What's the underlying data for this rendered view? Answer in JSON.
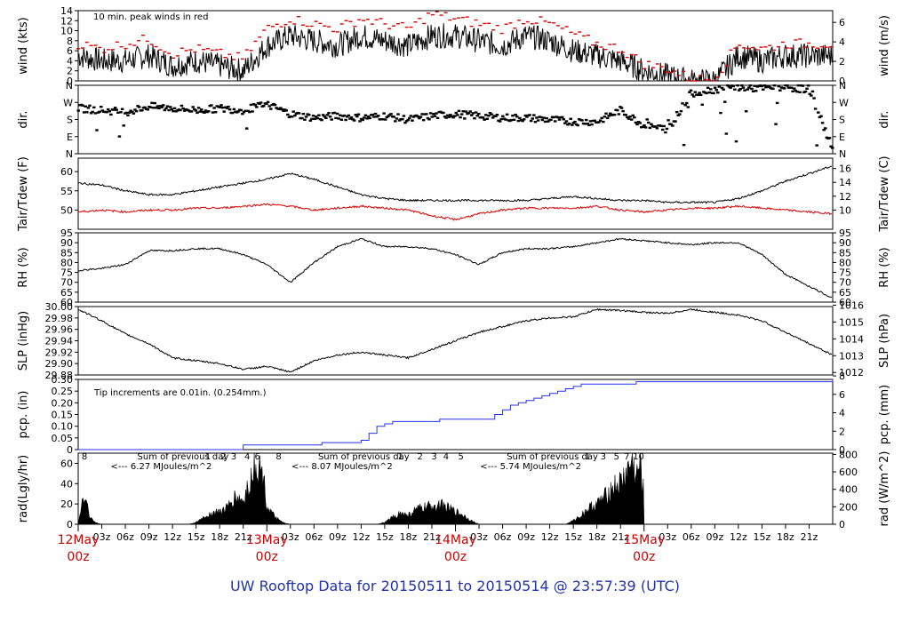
{
  "title": "UW Rooftop Data for 20150511  to  20150514 @ 23:57:39  (UTC)",
  "colors": {
    "black": "#000000",
    "red": "#dd0000",
    "blue": "#2233ee",
    "purple": "#9922aa",
    "date_red": "#cc0000",
    "title_blue": "#2233aa"
  },
  "time_axis": {
    "major_ticks": [
      {
        "top": "12May",
        "bottom": "00z"
      },
      {
        "top": "13May",
        "bottom": "00z"
      },
      {
        "top": "14May",
        "bottom": "00z"
      },
      {
        "top": "15May",
        "bottom": "00z"
      }
    ],
    "minor_labels": [
      "03z",
      "06z",
      "09z",
      "12z",
      "15z",
      "18z",
      "21z"
    ]
  },
  "chart_data": [
    {
      "type": "line",
      "id": "wind",
      "ylabel_left": "wind (kts)",
      "ylabel_right": "wind (m/s)",
      "ylim": [
        0,
        14
      ],
      "yticks_left": [
        "0",
        "2",
        "4",
        "6",
        "8",
        "10",
        "12",
        "14"
      ],
      "yticks_right": [
        "0",
        "2",
        "4",
        "6"
      ],
      "annotation": "10 min. peak winds in red",
      "series": [
        {
          "name": "wind",
          "color": "#000000",
          "x_hours": [
            0,
            3,
            6,
            9,
            12,
            15,
            18,
            21,
            24,
            27,
            30,
            33,
            36,
            39,
            42,
            45,
            48,
            51,
            54,
            57,
            60,
            63,
            66,
            69,
            72,
            75,
            78,
            81,
            84,
            87,
            90,
            93,
            96
          ],
          "values": [
            5,
            4,
            4,
            5,
            3,
            4,
            3,
            2,
            7,
            9,
            8,
            7,
            9,
            8,
            7,
            9,
            9,
            8,
            7,
            9,
            8,
            6,
            5,
            4,
            2,
            1,
            0,
            0,
            5,
            4,
            5,
            5,
            5
          ]
        },
        {
          "name": "10 min. peak winds",
          "color": "#dd0000",
          "x_hours": [
            0,
            3,
            6,
            9,
            12,
            15,
            18,
            21,
            24,
            27,
            30,
            33,
            36,
            39,
            42,
            45,
            48,
            51,
            54,
            57,
            60,
            63,
            66,
            69,
            72,
            75,
            78,
            81,
            84,
            87,
            90,
            93,
            96
          ],
          "values": [
            7,
            6,
            7,
            8,
            5,
            6,
            5,
            4,
            10,
            12,
            11,
            10,
            12,
            11,
            10,
            13,
            12,
            11,
            10,
            12,
            11,
            9,
            7,
            6,
            3,
            2,
            0,
            0,
            7,
            6,
            7,
            7,
            7
          ]
        }
      ]
    },
    {
      "type": "scatter",
      "id": "dir",
      "ylabel_left": "dir.",
      "ylabel_right": "dir.",
      "yticks_left": [
        "N",
        "E",
        "S",
        "W",
        "N"
      ],
      "yticks_right": [
        "N",
        "E",
        "S",
        "W",
        "N"
      ],
      "series": [
        {
          "name": "dir",
          "color": "#000000",
          "x_hours": [
            0,
            3,
            6,
            9,
            12,
            15,
            18,
            21,
            24,
            27,
            30,
            33,
            36,
            39,
            42,
            45,
            48,
            51,
            54,
            57,
            60,
            63,
            66,
            69,
            72,
            75,
            78,
            81,
            84,
            87,
            90,
            93,
            96
          ],
          "values": [
            240,
            230,
            220,
            250,
            240,
            230,
            240,
            230,
            260,
            210,
            190,
            200,
            190,
            200,
            180,
            200,
            210,
            200,
            190,
            190,
            180,
            170,
            170,
            230,
            150,
            130,
            320,
            340,
            350,
            345,
            350,
            340,
            20
          ]
        }
      ]
    },
    {
      "type": "line",
      "id": "temp",
      "ylabel_left": "Tair/Tdew (F)",
      "ylabel_right": "Tair/Tdew (C)",
      "yticks_left": [
        "50",
        "55",
        "60"
      ],
      "yticks_right": [
        "10",
        "12",
        "14",
        "16"
      ],
      "series": [
        {
          "name": "Tair",
          "color": "#000000",
          "x_hours": [
            0,
            3,
            6,
            9,
            12,
            15,
            18,
            21,
            24,
            27,
            30,
            33,
            36,
            39,
            42,
            45,
            48,
            51,
            54,
            57,
            60,
            63,
            66,
            69,
            72,
            75,
            78,
            81,
            84,
            87,
            90,
            93,
            96
          ],
          "values": [
            57,
            56.5,
            55,
            54,
            54,
            55,
            56,
            57,
            58,
            59.5,
            58,
            56,
            54,
            53,
            52.5,
            52.5,
            52.5,
            52.5,
            52.5,
            52.5,
            53,
            53.5,
            53,
            52.5,
            52.5,
            52,
            52,
            52,
            53,
            55,
            57.5,
            59.5,
            61.5
          ]
        },
        {
          "name": "Tdew",
          "color": "#dd0000",
          "x_hours": [
            0,
            3,
            6,
            9,
            12,
            15,
            18,
            21,
            24,
            27,
            30,
            33,
            36,
            39,
            42,
            45,
            48,
            51,
            54,
            57,
            60,
            63,
            66,
            69,
            72,
            75,
            78,
            81,
            84,
            87,
            90,
            93,
            96
          ],
          "values": [
            49.5,
            50,
            49.5,
            50,
            50,
            50.5,
            50.5,
            51,
            51.5,
            51,
            50,
            50.5,
            51,
            50.5,
            50,
            48.5,
            47.5,
            49,
            50,
            50.5,
            50.5,
            50.5,
            51,
            50,
            49.5,
            50,
            50.5,
            50.5,
            51,
            50.5,
            50,
            49.5,
            49
          ]
        }
      ]
    },
    {
      "type": "line",
      "id": "rh",
      "ylabel_left": "RH (%)",
      "ylabel_right": "RH (%)",
      "ylim": [
        60,
        95
      ],
      "yticks_left": [
        "60",
        "65",
        "70",
        "75",
        "80",
        "85",
        "90",
        "95"
      ],
      "yticks_right": [
        "60",
        "65",
        "70",
        "75",
        "80",
        "85",
        "90",
        "95"
      ],
      "series": [
        {
          "name": "RH",
          "color": "#000000",
          "x_hours": [
            0,
            3,
            6,
            9,
            12,
            15,
            18,
            21,
            24,
            27,
            30,
            33,
            36,
            39,
            42,
            45,
            48,
            51,
            54,
            57,
            60,
            63,
            66,
            69,
            72,
            75,
            78,
            81,
            84,
            87,
            90,
            93,
            96
          ],
          "values": [
            76,
            77,
            79,
            86,
            86,
            87,
            87,
            84,
            79,
            70,
            80,
            88,
            92,
            88,
            88,
            87,
            84,
            79,
            85,
            87,
            87,
            88,
            90,
            92,
            91,
            90,
            89,
            90,
            90,
            84,
            74,
            68,
            62
          ]
        }
      ]
    },
    {
      "type": "line",
      "id": "slp",
      "ylabel_left": "SLP (inHg)",
      "ylabel_right": "SLP (hPa)",
      "ylim": [
        29.88,
        30.0
      ],
      "yticks_left": [
        "29.88",
        "29.90",
        "29.92",
        "29.94",
        "29.96",
        "29.98",
        "30.00"
      ],
      "yticks_right": [
        "1012",
        "1013",
        "1014",
        "1015",
        "1016"
      ],
      "series": [
        {
          "name": "SLP",
          "color": "#000000",
          "x_hours": [
            0,
            3,
            6,
            9,
            12,
            15,
            18,
            21,
            24,
            27,
            30,
            33,
            36,
            39,
            42,
            45,
            48,
            51,
            54,
            57,
            60,
            63,
            66,
            69,
            72,
            75,
            78,
            81,
            84,
            87,
            90,
            93,
            96
          ],
          "values": [
            29.995,
            29.975,
            29.952,
            29.935,
            29.91,
            29.905,
            29.9,
            29.89,
            29.895,
            29.885,
            29.905,
            29.915,
            29.92,
            29.915,
            29.91,
            29.925,
            29.94,
            29.955,
            29.965,
            29.975,
            29.98,
            29.982,
            29.995,
            29.993,
            29.99,
            29.988,
            29.995,
            29.99,
            29.985,
            29.975,
            29.955,
            29.935,
            29.915
          ]
        }
      ]
    },
    {
      "type": "line",
      "id": "pcp",
      "ylabel_left": "pcp. (in)",
      "ylabel_right": "pcp. (mm)",
      "ylim": [
        0,
        0.3
      ],
      "yticks_left": [
        "0",
        "0.05",
        "0.10",
        "0.15",
        "0.20",
        "0.25",
        "0.30"
      ],
      "yticks_right": [
        "0",
        "2",
        "4",
        "6",
        "8"
      ],
      "annotation": "Tip increments are 0.01in. (0.254mm.)",
      "series": [
        {
          "name": "pcp",
          "color": "#2233ee",
          "x_hours": [
            0,
            20,
            21,
            30,
            31,
            36,
            37,
            38,
            39,
            40,
            45,
            46,
            52,
            53,
            54,
            55,
            56,
            57,
            58,
            59,
            60,
            61,
            62,
            63,
            64,
            70,
            71,
            96
          ],
          "values": [
            0,
            0,
            0.02,
            0.02,
            0.03,
            0.04,
            0.07,
            0.1,
            0.11,
            0.12,
            0.12,
            0.13,
            0.13,
            0.15,
            0.17,
            0.19,
            0.2,
            0.21,
            0.22,
            0.23,
            0.24,
            0.25,
            0.26,
            0.27,
            0.28,
            0.28,
            0.29,
            0.3
          ]
        }
      ]
    },
    {
      "type": "area",
      "id": "rad",
      "ylabel_left": "rad(Lgly/hr)",
      "ylabel_right": "rad (W/m^2)",
      "ylim": [
        0,
        70
      ],
      "yticks_left": [
        "0",
        "20",
        "40",
        "60"
      ],
      "yticks_right": [
        "0",
        "200",
        "400",
        "600",
        "800"
      ],
      "annotations": [
        {
          "text": "Sum of previous day",
          "hour": 3
        },
        {
          "text": "<--- 6.27 MJoules/m^2",
          "hour": 3
        },
        {
          "text": "Sum of previous day",
          "hour": 26
        },
        {
          "text": "<--- 8.07 MJoules/m^2",
          "hour": 26
        },
        {
          "text": "Sum of previous day",
          "hour": 50
        },
        {
          "text": "<--- 5.74 MJoules/m^2",
          "hour": 50
        }
      ],
      "hour_labels": [
        {
          "text": "8",
          "hour": 0.8
        },
        {
          "text": "1",
          "hour": 16.5
        },
        {
          "text": "2",
          "hour": 18.5
        },
        {
          "text": "3",
          "hour": 19.8
        },
        {
          "text": "4",
          "hour": 21.5
        },
        {
          "text": "6",
          "hour": 22.8
        },
        {
          "text": "8",
          "hour": 25.5
        },
        {
          "text": "1",
          "hour": 41
        },
        {
          "text": "2",
          "hour": 43.5
        },
        {
          "text": "3",
          "hour": 45.3
        },
        {
          "text": "4",
          "hour": 46.8
        },
        {
          "text": "5",
          "hour": 48.7
        },
        {
          "text": "1",
          "hour": 64.8
        },
        {
          "text": "3",
          "hour": 66.8
        },
        {
          "text": "5",
          "hour": 68.5
        },
        {
          "text": "7",
          "hour": 69.8
        },
        {
          "text": "10",
          "hour": 71.3
        }
      ],
      "series": [
        {
          "name": "rad",
          "color": "#000000",
          "x_hours": [
            0,
            0.5,
            1,
            1.5,
            2,
            2.5,
            3,
            14,
            15,
            16,
            17,
            18,
            19,
            20,
            21,
            22,
            22.5,
            23,
            23.5,
            24,
            25,
            26,
            27,
            38,
            39,
            40,
            41,
            42,
            43,
            44,
            45,
            46,
            47,
            48,
            49,
            50,
            51,
            62,
            63,
            64,
            65,
            66,
            67,
            68,
            69,
            70,
            70.5,
            71,
            71.5,
            72,
            72
          ],
          "values": [
            0,
            25,
            28,
            8,
            3,
            1,
            0,
            0,
            2,
            8,
            12,
            14,
            18,
            30,
            25,
            50,
            70,
            60,
            55,
            20,
            8,
            2,
            0,
            0,
            2,
            8,
            12,
            10,
            16,
            18,
            20,
            22,
            18,
            14,
            10,
            4,
            0,
            0,
            4,
            10,
            18,
            22,
            30,
            40,
            45,
            60,
            70,
            50,
            68,
            30,
            0
          ]
        }
      ]
    }
  ]
}
